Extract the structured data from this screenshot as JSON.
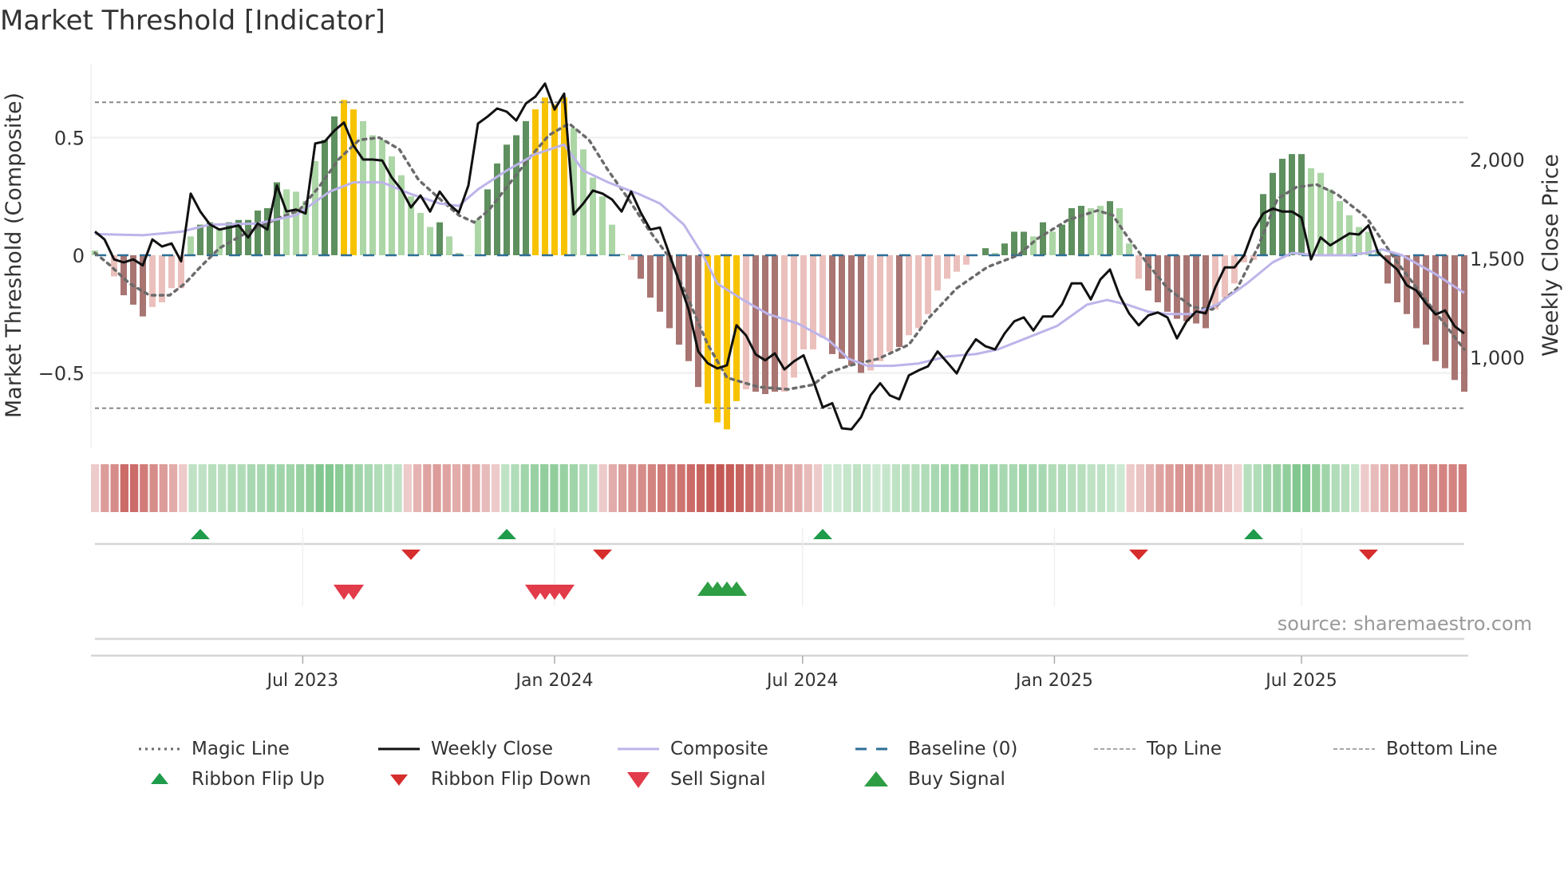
{
  "chart_data": {
    "type": "bar",
    "title": "Market Threshold [Indicator]",
    "ylabel": "Market Threshold (Composite)",
    "y2label": "Weekly Close Price",
    "ylim": [
      -0.78,
      0.78
    ],
    "y2lim": [
      600,
      2400
    ],
    "yticks": [
      {
        "v": 0.5,
        "label": "0.5"
      },
      {
        "v": 0,
        "label": "0"
      },
      {
        "v": -0.5,
        "label": "−0.5"
      }
    ],
    "y2ticks": [
      {
        "v": 2000,
        "label": "2,000"
      },
      {
        "v": 1500,
        "label": "1,500"
      },
      {
        "v": 1000,
        "label": "1,000"
      }
    ],
    "xticks": [
      {
        "week": 21.7,
        "label": "Jul 2023"
      },
      {
        "week": 48,
        "label": "Jan 2024"
      },
      {
        "week": 73.9,
        "label": "Jul 2024"
      },
      {
        "week": 100.2,
        "label": "Jan 2025"
      },
      {
        "week": 126,
        "label": "Jul 2025"
      }
    ],
    "top_line": 0.65,
    "bottom_line": -0.65,
    "baseline": 0,
    "bars": [
      [
        0.02,
        "lg"
      ],
      [
        0.0,
        "lg"
      ],
      [
        -0.09,
        "lr"
      ],
      [
        -0.17,
        "dr"
      ],
      [
        -0.21,
        "dr"
      ],
      [
        -0.26,
        "dr"
      ],
      [
        -0.22,
        "lr"
      ],
      [
        -0.2,
        "lr"
      ],
      [
        -0.14,
        "lr"
      ],
      [
        -0.14,
        "lr"
      ],
      [
        0.08,
        "lg"
      ],
      [
        0.13,
        "dg"
      ],
      [
        0.14,
        "dg"
      ],
      [
        0.11,
        "lg"
      ],
      [
        0.14,
        "dg"
      ],
      [
        0.15,
        "dg"
      ],
      [
        0.15,
        "dg"
      ],
      [
        0.19,
        "dg"
      ],
      [
        0.2,
        "dg"
      ],
      [
        0.31,
        "dg"
      ],
      [
        0.28,
        "lg"
      ],
      [
        0.27,
        "lg"
      ],
      [
        0.23,
        "lg"
      ],
      [
        0.4,
        "lg"
      ],
      [
        0.49,
        "dg"
      ],
      [
        0.59,
        "dg"
      ],
      [
        0.66,
        "y"
      ],
      [
        0.62,
        "y"
      ],
      [
        0.57,
        "lg"
      ],
      [
        0.51,
        "lg"
      ],
      [
        0.49,
        "lg"
      ],
      [
        0.42,
        "lg"
      ],
      [
        0.34,
        "lg"
      ],
      [
        0.25,
        "lg"
      ],
      [
        0.18,
        "lg"
      ],
      [
        0.12,
        "lg"
      ],
      [
        0.14,
        "dg"
      ],
      [
        0.08,
        "lg"
      ],
      [
        0.01,
        "lg"
      ],
      [
        0.0,
        "lg"
      ],
      [
        0.15,
        "lg"
      ],
      [
        0.28,
        "dg"
      ],
      [
        0.39,
        "dg"
      ],
      [
        0.47,
        "dg"
      ],
      [
        0.51,
        "dg"
      ],
      [
        0.57,
        "dg"
      ],
      [
        0.62,
        "y"
      ],
      [
        0.67,
        "y"
      ],
      [
        0.64,
        "y"
      ],
      [
        0.67,
        "y"
      ],
      [
        0.54,
        "lg"
      ],
      [
        0.45,
        "lg"
      ],
      [
        0.33,
        "lg"
      ],
      [
        0.25,
        "lg"
      ],
      [
        0.13,
        "lg"
      ],
      [
        0.005,
        "lg"
      ],
      [
        -0.02,
        "lr"
      ],
      [
        -0.1,
        "dr"
      ],
      [
        -0.18,
        "dr"
      ],
      [
        -0.24,
        "dr"
      ],
      [
        -0.31,
        "dr"
      ],
      [
        -0.38,
        "dr"
      ],
      [
        -0.45,
        "dr"
      ],
      [
        -0.56,
        "dr"
      ],
      [
        -0.63,
        "y"
      ],
      [
        -0.71,
        "y"
      ],
      [
        -0.74,
        "y"
      ],
      [
        -0.62,
        "y"
      ],
      [
        -0.57,
        "lr"
      ],
      [
        -0.58,
        "dr"
      ],
      [
        -0.59,
        "dr"
      ],
      [
        -0.58,
        "dr"
      ],
      [
        -0.58,
        "lr"
      ],
      [
        -0.52,
        "lr"
      ],
      [
        -0.4,
        "lr"
      ],
      [
        -0.4,
        "lr"
      ],
      [
        -0.35,
        "lr"
      ],
      [
        -0.42,
        "dr"
      ],
      [
        -0.44,
        "dr"
      ],
      [
        -0.47,
        "dr"
      ],
      [
        -0.5,
        "dr"
      ],
      [
        -0.49,
        "lr"
      ],
      [
        -0.45,
        "lr"
      ],
      [
        -0.41,
        "lr"
      ],
      [
        -0.39,
        "dr"
      ],
      [
        -0.34,
        "lr"
      ],
      [
        -0.31,
        "lr"
      ],
      [
        -0.25,
        "lr"
      ],
      [
        -0.15,
        "lr"
      ],
      [
        -0.1,
        "lr"
      ],
      [
        -0.07,
        "lr"
      ],
      [
        -0.04,
        "lr"
      ],
      [
        0.0,
        "lg"
      ],
      [
        0.03,
        "dg"
      ],
      [
        0.01,
        "lg"
      ],
      [
        0.05,
        "dg"
      ],
      [
        0.1,
        "dg"
      ],
      [
        0.1,
        "dg"
      ],
      [
        0.08,
        "lg"
      ],
      [
        0.14,
        "dg"
      ],
      [
        0.1,
        "lg"
      ],
      [
        0.13,
        "dg"
      ],
      [
        0.2,
        "dg"
      ],
      [
        0.21,
        "dg"
      ],
      [
        0.2,
        "lg"
      ],
      [
        0.21,
        "lg"
      ],
      [
        0.23,
        "dg"
      ],
      [
        0.2,
        "lg"
      ],
      [
        0.05,
        "lg"
      ],
      [
        -0.1,
        "lr"
      ],
      [
        -0.15,
        "dr"
      ],
      [
        -0.2,
        "dr"
      ],
      [
        -0.24,
        "dr"
      ],
      [
        -0.27,
        "dr"
      ],
      [
        -0.28,
        "dr"
      ],
      [
        -0.29,
        "dr"
      ],
      [
        -0.31,
        "dr"
      ],
      [
        -0.23,
        "lr"
      ],
      [
        -0.18,
        "lr"
      ],
      [
        -0.12,
        "lr"
      ],
      [
        -0.03,
        "lr"
      ],
      [
        -0.02,
        "lr"
      ],
      [
        0.26,
        "dg"
      ],
      [
        0.35,
        "dg"
      ],
      [
        0.41,
        "dg"
      ],
      [
        0.43,
        "dg"
      ],
      [
        0.43,
        "dg"
      ],
      [
        0.37,
        "lg"
      ],
      [
        0.35,
        "lg"
      ],
      [
        0.28,
        "lg"
      ],
      [
        0.23,
        "lg"
      ],
      [
        0.17,
        "lg"
      ],
      [
        0.12,
        "lg"
      ],
      [
        0.1,
        "lg"
      ],
      [
        0.02,
        "lg"
      ],
      [
        -0.12,
        "dr"
      ],
      [
        -0.2,
        "dr"
      ],
      [
        -0.25,
        "dr"
      ],
      [
        -0.31,
        "dr"
      ],
      [
        -0.38,
        "dr"
      ],
      [
        -0.45,
        "dr"
      ],
      [
        -0.48,
        "dr"
      ],
      [
        -0.53,
        "dr"
      ],
      [
        -0.58,
        "dr"
      ]
    ],
    "weekly_close": [
      1636,
      1596,
      1495,
      1480,
      1495,
      1465,
      1596,
      1560,
      1576,
      1485,
      1828,
      1737,
      1672,
      1646,
      1656,
      1667,
      1606,
      1677,
      1646,
      1869,
      1737,
      1747,
      1727,
      2081,
      2091,
      2146,
      2187,
      2071,
      2000,
      2000,
      1995,
      1909,
      1848,
      1758,
      1818,
      1737,
      1838,
      1773,
      1732,
      1869,
      2182,
      2217,
      2258,
      2242,
      2197,
      2283,
      2318,
      2384,
      2253,
      2333,
      1722,
      1778,
      1843,
      1828,
      1798,
      1737,
      1838,
      1732,
      1646,
      1656,
      1520,
      1384,
      1242,
      1030,
      970,
      944,
      960,
      1162,
      1111,
      1015,
      985,
      1020,
      939,
      980,
      1010,
      884,
      747,
      768,
      641,
      636,
      697,
      808,
      869,
      808,
      788,
      909,
      934,
      955,
      1030,
      975,
      919,
      1020,
      1091,
      1056,
      1040,
      1121,
      1182,
      1202,
      1136,
      1207,
      1207,
      1268,
      1374,
      1374,
      1293,
      1394,
      1444,
      1313,
      1222,
      1162,
      1212,
      1227,
      1202,
      1096,
      1182,
      1232,
      1222,
      1354,
      1455,
      1455,
      1515,
      1646,
      1727,
      1752,
      1737,
      1737,
      1707,
      1495,
      1606,
      1566,
      1596,
      1626,
      1621,
      1667,
      1530,
      1485,
      1444,
      1364,
      1338,
      1273,
      1217,
      1237,
      1157,
      1121
    ],
    "composite": [
      [
        0,
        0.09
      ],
      [
        5,
        0.085
      ],
      [
        9,
        0.1
      ],
      [
        12,
        0.13
      ],
      [
        17,
        0.135
      ],
      [
        21,
        0.17
      ],
      [
        24.5,
        0.27
      ],
      [
        27,
        0.31
      ],
      [
        30,
        0.31
      ],
      [
        33,
        0.26
      ],
      [
        36,
        0.22
      ],
      [
        38,
        0.21
      ],
      [
        40,
        0.28
      ],
      [
        43,
        0.36
      ],
      [
        46,
        0.43
      ],
      [
        49,
        0.47
      ],
      [
        51,
        0.36
      ],
      [
        53.6,
        0.31
      ],
      [
        56.8,
        0.26
      ],
      [
        59,
        0.22
      ],
      [
        61.5,
        0.13
      ],
      [
        63.5,
        0.0
      ],
      [
        65,
        -0.12
      ],
      [
        67.7,
        -0.19
      ],
      [
        70.3,
        -0.25
      ],
      [
        73.4,
        -0.29
      ],
      [
        76.6,
        -0.36
      ],
      [
        78.7,
        -0.44
      ],
      [
        80.7,
        -0.47
      ],
      [
        83.3,
        -0.47
      ],
      [
        86,
        -0.46
      ],
      [
        89,
        -0.43
      ],
      [
        92,
        -0.42
      ],
      [
        94.3,
        -0.4
      ],
      [
        97.4,
        -0.35
      ],
      [
        100.5,
        -0.3
      ],
      [
        103.6,
        -0.21
      ],
      [
        105.7,
        -0.19
      ],
      [
        107.8,
        -0.21
      ],
      [
        110,
        -0.24
      ],
      [
        112,
        -0.25
      ],
      [
        114.6,
        -0.25
      ],
      [
        117.2,
        -0.21
      ],
      [
        120.3,
        -0.12
      ],
      [
        123,
        -0.03
      ],
      [
        125,
        0.01
      ],
      [
        127.6,
        0.0
      ],
      [
        130.7,
        0.0
      ],
      [
        132.8,
        0.01
      ],
      [
        134.4,
        0.025
      ],
      [
        136.5,
        0.0
      ],
      [
        140,
        -0.08
      ],
      [
        143,
        -0.16
      ]
    ],
    "magic_line": [
      [
        0,
        0.01
      ],
      [
        1.5,
        -0.04
      ],
      [
        3.6,
        -0.12
      ],
      [
        5.7,
        -0.17
      ],
      [
        7.8,
        -0.17
      ],
      [
        9.4,
        -0.12
      ],
      [
        11,
        -0.05
      ],
      [
        13,
        0.03
      ],
      [
        16,
        0.1
      ],
      [
        19.3,
        0.16
      ],
      [
        21.3,
        0.19
      ],
      [
        23.4,
        0.29
      ],
      [
        25.5,
        0.41
      ],
      [
        27.6,
        0.49
      ],
      [
        29.7,
        0.5
      ],
      [
        31.8,
        0.45
      ],
      [
        33.8,
        0.32
      ],
      [
        36,
        0.24
      ],
      [
        38,
        0.17
      ],
      [
        39.6,
        0.14
      ],
      [
        41.1,
        0.19
      ],
      [
        43.2,
        0.3
      ],
      [
        45.3,
        0.41
      ],
      [
        47.4,
        0.51
      ],
      [
        49.5,
        0.56
      ],
      [
        51.6,
        0.49
      ],
      [
        53.6,
        0.36
      ],
      [
        55.7,
        0.24
      ],
      [
        57.8,
        0.11
      ],
      [
        60,
        -0.01
      ],
      [
        62,
        -0.19
      ],
      [
        64,
        -0.38
      ],
      [
        66,
        -0.52
      ],
      [
        69.3,
        -0.56
      ],
      [
        72.4,
        -0.57
      ],
      [
        75,
        -0.55
      ],
      [
        76.6,
        -0.5
      ],
      [
        78.7,
        -0.47
      ],
      [
        81.8,
        -0.44
      ],
      [
        85,
        -0.38
      ],
      [
        87,
        -0.27
      ],
      [
        90,
        -0.14
      ],
      [
        93.2,
        -0.05
      ],
      [
        96.4,
        0.0
      ],
      [
        98.4,
        0.07
      ],
      [
        101.6,
        0.15
      ],
      [
        104.7,
        0.19
      ],
      [
        106.3,
        0.17
      ],
      [
        107.8,
        0.08
      ],
      [
        110,
        -0.04
      ],
      [
        112,
        -0.14
      ],
      [
        114.6,
        -0.22
      ],
      [
        116.7,
        -0.23
      ],
      [
        119.3,
        -0.14
      ],
      [
        121.4,
        0.03
      ],
      [
        123.5,
        0.24
      ],
      [
        125.5,
        0.29
      ],
      [
        127.6,
        0.3
      ],
      [
        129.7,
        0.26
      ],
      [
        132.8,
        0.16
      ],
      [
        136,
        -0.03
      ],
      [
        139,
        -0.19
      ],
      [
        143,
        -0.4
      ]
    ],
    "ribbon": [
      -0.2,
      -0.5,
      -0.6,
      -0.8,
      -0.8,
      -0.7,
      -0.6,
      -0.5,
      -0.4,
      -0.2,
      0.3,
      0.3,
      0.35,
      0.35,
      0.4,
      0.4,
      0.45,
      0.45,
      0.5,
      0.5,
      0.5,
      0.55,
      0.6,
      0.7,
      0.7,
      0.65,
      0.6,
      0.5,
      0.45,
      0.4,
      0.35,
      0.3,
      -0.2,
      -0.35,
      -0.45,
      -0.5,
      -0.45,
      -0.4,
      -0.45,
      -0.4,
      -0.3,
      -0.2,
      0.3,
      0.4,
      0.5,
      0.55,
      0.6,
      0.6,
      0.55,
      0.5,
      0.4,
      0.35,
      -0.2,
      -0.4,
      -0.5,
      -0.55,
      -0.6,
      -0.65,
      -0.7,
      -0.7,
      -0.75,
      -0.8,
      -0.85,
      -0.9,
      -0.95,
      -0.9,
      -0.85,
      -0.8,
      -0.7,
      -0.6,
      -0.5,
      -0.45,
      -0.4,
      -0.3,
      -0.2,
      0.2,
      0.2,
      0.25,
      0.3,
      0.25,
      0.2,
      0.25,
      0.3,
      0.35,
      0.35,
      0.4,
      0.45,
      0.5,
      0.5,
      0.55,
      0.5,
      0.5,
      0.5,
      0.45,
      0.45,
      0.5,
      0.45,
      0.45,
      0.4,
      0.4,
      0.35,
      0.35,
      0.3,
      0.3,
      0.25,
      0.2,
      -0.2,
      -0.25,
      -0.35,
      -0.45,
      -0.5,
      -0.55,
      -0.55,
      -0.5,
      -0.45,
      -0.35,
      -0.25,
      -0.15,
      0.35,
      0.4,
      0.5,
      0.55,
      0.6,
      0.7,
      0.7,
      0.6,
      0.5,
      0.4,
      0.35,
      0.25,
      -0.2,
      -0.3,
      -0.4,
      -0.45,
      -0.5,
      -0.55,
      -0.6,
      -0.6,
      -0.65,
      -0.65,
      -0.7
    ],
    "ribbon_flip_up": [
      11,
      43,
      76,
      121
    ],
    "ribbon_flip_down": [
      33,
      53,
      109,
      133
    ],
    "sell_signals": [
      26,
      27,
      46,
      47,
      48,
      49
    ],
    "buy_signals": [
      64,
      65,
      66,
      67
    ],
    "legend_placement": "bottom",
    "source": "source: sharemaestro.com"
  },
  "colors": {
    "dg": "#5e8f5e",
    "lg": "#acd6a6",
    "dr": "#a87572",
    "lr": "#ebc0bc",
    "y": "#f7c300",
    "close": "#111111",
    "composite": "#bdb4ea",
    "magic": "#6b6b6b",
    "baseline": "#2d6e96",
    "threshold": "#888888",
    "ribbon_red": [
      196,
      88,
      84
    ],
    "ribbon_green": [
      96,
      184,
      112
    ],
    "flip_up": "#1e9b4b",
    "flip_down": "#d62d2d",
    "sell": "#e23b4a",
    "buy": "#2e9e44"
  },
  "legend": {
    "items": [
      {
        "label": "Magic Line",
        "icon": "dotted-line"
      },
      {
        "label": "Weekly Close",
        "icon": "solid-line"
      },
      {
        "label": "Composite",
        "icon": "lavender-line"
      },
      {
        "label": "Baseline (0)",
        "icon": "dashed-line"
      },
      {
        "label": "Top Line",
        "icon": "thin-dashed-line"
      },
      {
        "label": "Bottom Line",
        "icon": "thin-dashed-line"
      },
      {
        "label": "Ribbon Flip Up",
        "icon": "triangle-up"
      },
      {
        "label": "Ribbon Flip Down",
        "icon": "triangle-down"
      },
      {
        "label": "Sell Signal",
        "icon": "triangle-down-large"
      },
      {
        "label": "Buy Signal",
        "icon": "triangle-up-large"
      }
    ]
  }
}
